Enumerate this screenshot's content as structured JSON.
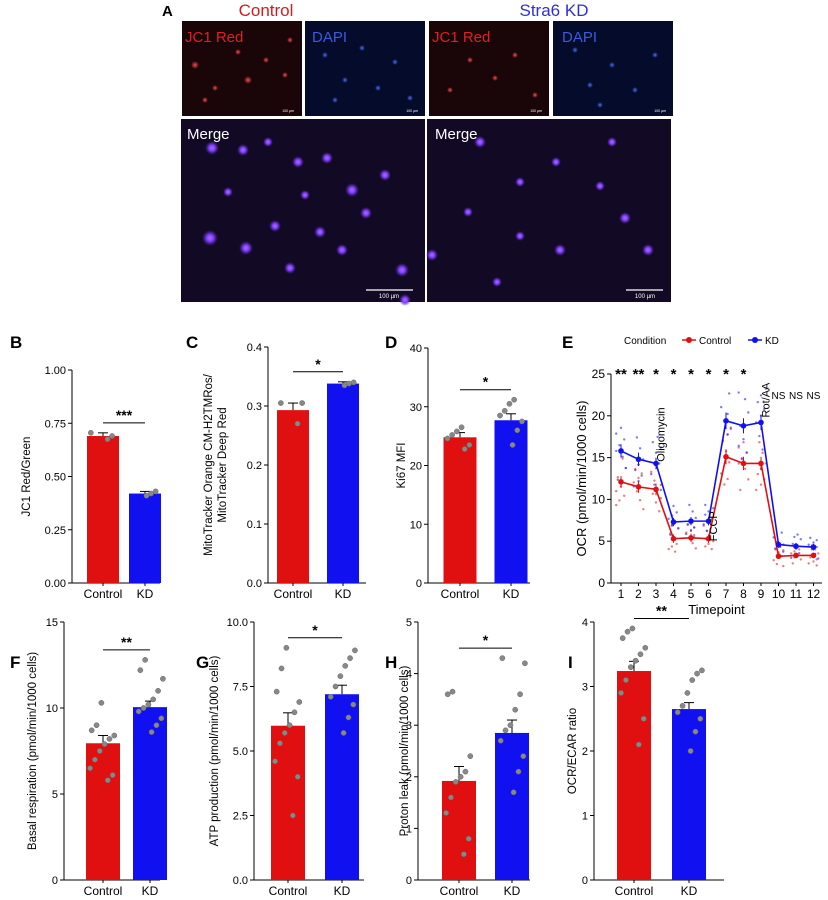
{
  "panel_a": {
    "letter": "A",
    "control_label": "Control",
    "kd_label": "Stra6 KD",
    "control_color": "#d41c1c",
    "kd_color": "#2f2fd8",
    "jc1_label": "JC1 Red",
    "dapi_label": "DAPI",
    "merge_label": "Merge",
    "scale_small": "100 µm",
    "scale_large": "100 µm"
  },
  "colors": {
    "control": "#e01010",
    "kd": "#1010f0"
  },
  "chart_data": [
    {
      "id": "B",
      "letter": "B",
      "type": "bar",
      "categories": [
        "Control",
        "KD"
      ],
      "values": [
        0.69,
        0.42
      ],
      "errors": [
        0.015,
        0.01
      ],
      "points": [
        [
          0.675,
          0.69,
          0.705
        ],
        [
          0.41,
          0.42,
          0.43
        ]
      ],
      "ylabel": "JC1 Red/Green",
      "xlabel": "",
      "ylim": [
        0,
        1.0
      ],
      "yticks": [
        0.0,
        0.25,
        0.5,
        0.75,
        1.0
      ],
      "ytick_labels": [
        "0.00",
        "0.25",
        "0.50",
        "0.75",
        "1.00"
      ],
      "significance": "***"
    },
    {
      "id": "C",
      "letter": "C",
      "type": "bar",
      "categories": [
        "Control",
        "KD"
      ],
      "values": [
        0.293,
        0.338
      ],
      "errors": [
        0.012,
        0.003
      ],
      "points": [
        [
          0.27,
          0.305,
          0.305
        ],
        [
          0.335,
          0.338,
          0.34
        ]
      ],
      "ylabel_lines": [
        "MitoTracker Orange CM-H2TMRos/",
        "MitoTracker Deep Red"
      ],
      "xlabel": "",
      "ylim": [
        0,
        0.4
      ],
      "yticks": [
        0.0,
        0.1,
        0.2,
        0.3,
        0.4
      ],
      "ytick_labels": [
        "0.0",
        "0.1",
        "0.2",
        "0.3",
        "0.4"
      ],
      "significance": "*"
    },
    {
      "id": "D",
      "letter": "D",
      "type": "bar",
      "categories": [
        "Control",
        "KD"
      ],
      "values": [
        24.8,
        27.7
      ],
      "errors": [
        0.8,
        1.1
      ],
      "points": [
        [
          22.8,
          23.5,
          24.6,
          25.2,
          25.8,
          26.5
        ],
        [
          23.5,
          26.0,
          27.5,
          28.5,
          29.3,
          30.5,
          31.2
        ]
      ],
      "ylabel": "Ki67 MFI",
      "xlabel": "",
      "ylim": [
        0,
        40
      ],
      "yticks": [
        0,
        10,
        20,
        30,
        40
      ],
      "ytick_labels": [
        "0",
        "10",
        "20",
        "30",
        "40"
      ],
      "significance": "*"
    },
    {
      "id": "F",
      "letter": "F",
      "type": "bar",
      "categories": [
        "Control",
        "KD"
      ],
      "values": [
        7.95,
        10.05
      ],
      "errors": [
        0.45,
        0.35
      ],
      "points": [
        [
          5.8,
          6.1,
          6.5,
          7.0,
          7.5,
          7.9,
          8.2,
          8.4,
          8.7,
          9.0,
          10.3
        ],
        [
          8.6,
          9.0,
          9.4,
          9.8,
          10.0,
          10.2,
          10.5,
          11.0,
          11.7,
          12.2,
          12.8
        ]
      ],
      "ylabel": "Basal respiration (pmol/min/1000 cells)",
      "xlabel": "",
      "ylim": [
        0,
        15
      ],
      "yticks": [
        0,
        5,
        10,
        15
      ],
      "ytick_labels": [
        "0",
        "5",
        "10",
        "15"
      ],
      "significance": "**"
    },
    {
      "id": "G",
      "letter": "G",
      "type": "bar",
      "categories": [
        "Control",
        "KD"
      ],
      "values": [
        5.98,
        7.2
      ],
      "errors": [
        0.5,
        0.35
      ],
      "points": [
        [
          2.5,
          4.0,
          4.6,
          5.3,
          5.7,
          6.0,
          6.5,
          6.9,
          7.3,
          8.2,
          9.0
        ],
        [
          5.7,
          6.3,
          6.8,
          7.1,
          7.5,
          7.9,
          8.3,
          8.6,
          8.9
        ]
      ],
      "ylabel": "ATP production (pmol/min/1000 cells)",
      "xlabel": "",
      "ylim": [
        0,
        10
      ],
      "yticks": [
        0.0,
        2.5,
        5.0,
        7.5,
        10.0
      ],
      "ytick_labels": [
        "0.0",
        "2.5",
        "5.0",
        "7.5",
        "10.0"
      ],
      "significance": "*"
    },
    {
      "id": "H",
      "letter": "H",
      "type": "bar",
      "categories": [
        "Control",
        "KD"
      ],
      "values": [
        1.92,
        2.85
      ],
      "errors": [
        0.28,
        0.25
      ],
      "points": [
        [
          0.5,
          0.8,
          1.3,
          1.6,
          1.9,
          2.0,
          2.1,
          2.4,
          3.6,
          3.65
        ],
        [
          1.7,
          2.1,
          2.4,
          2.7,
          2.9,
          3.0,
          3.3,
          3.6,
          4.2,
          4.3
        ]
      ],
      "ylabel": "Proton leak (pmol/min/1000 cells)",
      "xlabel": "",
      "ylim": [
        0,
        5
      ],
      "yticks": [
        0,
        1,
        2,
        3,
        4,
        5
      ],
      "ytick_labels": [
        "0",
        "1",
        "2",
        "3",
        "4",
        "5"
      ],
      "significance": "*"
    },
    {
      "id": "I",
      "letter": "I",
      "type": "bar",
      "categories": [
        "Control",
        "KD"
      ],
      "values": [
        3.24,
        2.65
      ],
      "errors": [
        0.15,
        0.1
      ],
      "points": [
        [
          2.1,
          2.5,
          2.9,
          3.1,
          3.3,
          3.4,
          3.5,
          3.6,
          3.75,
          3.85,
          3.9
        ],
        [
          2.0,
          2.3,
          2.5,
          2.6,
          2.7,
          2.9,
          3.1,
          3.2,
          3.25
        ]
      ],
      "ylabel": "OCR/ECAR ratio",
      "xlabel": "",
      "ylim": [
        0,
        4
      ],
      "yticks": [
        0,
        1,
        2,
        3,
        4
      ],
      "ytick_labels": [
        "0",
        "1",
        "2",
        "3",
        "4"
      ],
      "significance": "**"
    },
    {
      "id": "E",
      "letter": "E",
      "type": "line",
      "legend_title": "Condition",
      "legend_position": "top",
      "x": [
        1,
        2,
        3,
        4,
        5,
        6,
        7,
        8,
        9,
        10,
        11,
        12
      ],
      "xlabel": "Timepoint",
      "ylabel": "OCR (pmol/min/1000 cells)",
      "ylim": [
        0,
        25
      ],
      "yticks": [
        0,
        5,
        10,
        15,
        20,
        25
      ],
      "ytick_labels": [
        "0",
        "5",
        "10",
        "15",
        "20",
        "25"
      ],
      "series": [
        {
          "name": "Control",
          "values": [
            12.1,
            11.5,
            11.2,
            5.3,
            5.4,
            5.3,
            15.1,
            14.3,
            14.3,
            3.2,
            3.3,
            3.3
          ],
          "errors": [
            0.7,
            0.7,
            0.7,
            0.5,
            0.5,
            0.5,
            0.9,
            0.8,
            0.8,
            0.3,
            0.3,
            0.3
          ]
        },
        {
          "name": "KD",
          "values": [
            15.8,
            14.8,
            14.3,
            7.3,
            7.4,
            7.4,
            19.4,
            18.8,
            19.2,
            4.6,
            4.4,
            4.3
          ],
          "errors": [
            0.8,
            0.8,
            0.7,
            0.5,
            0.5,
            0.5,
            1.0,
            0.9,
            0.9,
            0.4,
            0.4,
            0.4
          ]
        }
      ],
      "significance_labels": [
        "**",
        "**",
        "*",
        "*",
        "*",
        "*",
        "*",
        "*",
        "",
        "NS",
        "NS",
        "NS"
      ],
      "annotations": [
        {
          "text": "Oligomycin",
          "x": 3.5,
          "y": 14.5
        },
        {
          "text": "FCCP",
          "x": 6.5,
          "y": 5.0
        },
        {
          "text": "Rot/AA",
          "x": 9.5,
          "y": 19.8
        }
      ]
    }
  ]
}
